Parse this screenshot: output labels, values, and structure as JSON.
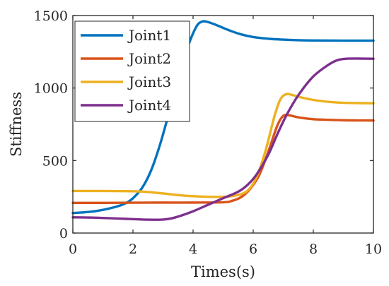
{
  "chart_data": {
    "type": "line",
    "xlabel": "Times(s)",
    "ylabel": "Stiffness",
    "xlim": [
      0,
      10
    ],
    "ylim": [
      0,
      1500
    ],
    "xticks": [
      0,
      2,
      4,
      6,
      8,
      10
    ],
    "yticks": [
      0,
      500,
      1000,
      1500
    ],
    "grid": false,
    "legend_position": "top-left",
    "series": [
      {
        "name": "Joint1",
        "color": "#0072BD",
        "x": [
          0,
          0.5,
          1,
          1.5,
          1.8,
          2,
          2.3,
          2.6,
          2.9,
          3.2,
          3.5,
          3.8,
          4.1,
          4.3,
          4.5,
          4.8,
          5.2,
          5.6,
          6,
          6.5,
          7,
          7.5,
          8,
          9,
          10
        ],
        "y": [
          138,
          145,
          160,
          185,
          210,
          240,
          310,
          430,
          610,
          830,
          1060,
          1270,
          1420,
          1458,
          1455,
          1432,
          1398,
          1370,
          1352,
          1340,
          1334,
          1330,
          1328,
          1327,
          1327
        ]
      },
      {
        "name": "Joint2",
        "color": "#D95319",
        "x": [
          0,
          1,
          2,
          3,
          4,
          5,
          5.3,
          5.6,
          5.9,
          6.2,
          6.5,
          6.8,
          7,
          7.2,
          7.5,
          8,
          9,
          10
        ],
        "y": [
          208,
          208,
          209,
          210,
          210,
          212,
          222,
          248,
          305,
          400,
          560,
          740,
          808,
          812,
          798,
          785,
          778,
          776
        ]
      },
      {
        "name": "Joint3",
        "color": "#EDB120",
        "x": [
          0,
          1,
          2,
          2.5,
          3,
          3.5,
          4,
          4.5,
          5,
          5.4,
          5.8,
          6.1,
          6.4,
          6.7,
          6.9,
          7.1,
          7.3,
          7.6,
          8,
          8.5,
          9,
          10
        ],
        "y": [
          290,
          290,
          288,
          283,
          273,
          262,
          254,
          250,
          250,
          258,
          290,
          380,
          560,
          800,
          920,
          958,
          952,
          935,
          918,
          905,
          898,
          895
        ]
      },
      {
        "name": "Joint4",
        "color": "#7E2F8E",
        "x": [
          0,
          0.5,
          1,
          1.5,
          2,
          2.5,
          3,
          3.3,
          3.6,
          4,
          4.5,
          5,
          5.5,
          5.8,
          6.1,
          6.5,
          6.8,
          7.1,
          7.5,
          8,
          8.5,
          8.8,
          9.1,
          9.5,
          10
        ],
        "y": [
          108,
          107,
          104,
          100,
          96,
          92,
          93,
          102,
          120,
          150,
          195,
          240,
          285,
          330,
          400,
          540,
          680,
          810,
          950,
          1080,
          1160,
          1192,
          1202,
          1203,
          1202
        ]
      }
    ]
  }
}
